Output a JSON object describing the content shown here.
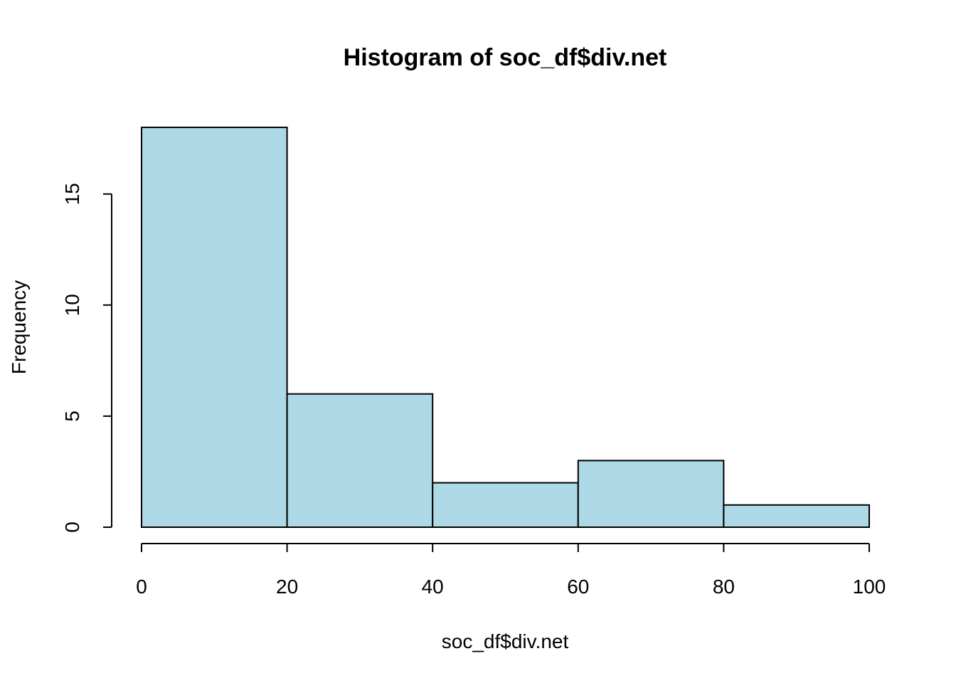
{
  "chart_data": {
    "type": "bar",
    "title": "Histogram of soc_df$div.net",
    "xlabel": "soc_df$div.net",
    "ylabel": "Frequency",
    "bins": [
      [
        0,
        20
      ],
      [
        20,
        40
      ],
      [
        40,
        60
      ],
      [
        60,
        80
      ],
      [
        80,
        100
      ]
    ],
    "values": [
      18,
      6,
      2,
      3,
      1
    ],
    "xlim": [
      0,
      100
    ],
    "ylim": [
      0,
      18
    ],
    "x_ticks": [
      0,
      20,
      40,
      60,
      80,
      100
    ],
    "y_ticks": [
      0,
      5,
      10,
      15
    ],
    "bar_color": "#add8e6",
    "grid": false
  }
}
